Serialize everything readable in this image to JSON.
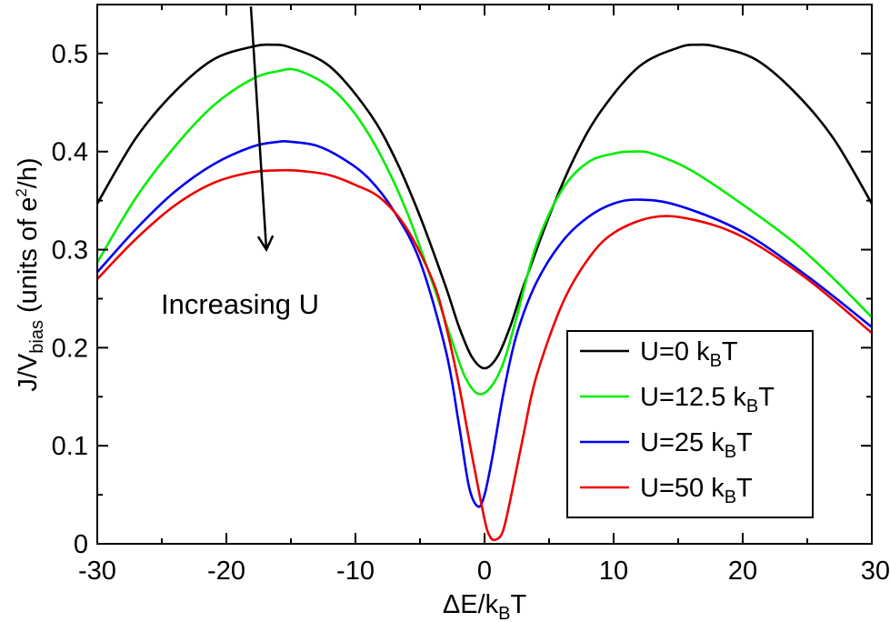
{
  "chart_data": {
    "type": "line",
    "title": "",
    "xlabel": {
      "prefix": "ΔE/k",
      "sub": "B",
      "suffix": "T"
    },
    "ylabel": {
      "prefix": "J/V",
      "sub": "bias",
      "mid": " (units of e",
      "sup": "2",
      "suffix": "/h)"
    },
    "xlim": [
      -30,
      30
    ],
    "ylim": [
      0,
      0.55
    ],
    "xticks": [
      -30,
      -20,
      -10,
      0,
      10,
      20,
      30
    ],
    "xtick_labels": [
      "-30",
      "-20",
      "-10",
      "0",
      "10",
      "20",
      "30"
    ],
    "yticks": [
      0,
      0.1,
      0.2,
      0.3,
      0.4,
      0.5
    ],
    "ytick_labels": [
      "0",
      "0.1",
      "0.2",
      "0.3",
      "0.4",
      "0.5"
    ],
    "grid": false,
    "legend_position": "lower-right",
    "annotation": {
      "text": "Increasing U",
      "arrow_from": [
        -18.1,
        0.548
      ],
      "arrow_to": [
        -16.9,
        0.3
      ]
    },
    "series": [
      {
        "name": "U=0 kBT",
        "label_parts": {
          "prefix": "U=0 k",
          "sub": "B",
          "suffix": "T"
        },
        "color": "#000000",
        "x": [
          -30,
          -27,
          -24,
          -21,
          -18,
          -16.5,
          -15,
          -12,
          -9,
          -7,
          -5,
          -3,
          -2,
          -1,
          0,
          1,
          2,
          3,
          5,
          7,
          9,
          12,
          15,
          16.5,
          18,
          21,
          24,
          27,
          30
        ],
        "y": [
          0.347,
          0.414,
          0.461,
          0.494,
          0.507,
          0.509,
          0.506,
          0.487,
          0.441,
          0.395,
          0.334,
          0.262,
          0.222,
          0.191,
          0.179,
          0.191,
          0.222,
          0.262,
          0.334,
          0.395,
          0.441,
          0.487,
          0.506,
          0.509,
          0.507,
          0.494,
          0.461,
          0.414,
          0.347
        ]
      },
      {
        "name": "U=12.5 kBT",
        "label_parts": {
          "prefix": "U=12.5 k",
          "sub": "B",
          "suffix": "T"
        },
        "color": "#00ee00",
        "x": [
          -30,
          -27,
          -24,
          -21,
          -18,
          -16,
          -14.5,
          -12,
          -10,
          -8,
          -6,
          -4,
          -2.5,
          -1.5,
          -0.5,
          0.5,
          1.5,
          2.5,
          4,
          6,
          8,
          10,
          11.5,
          13,
          16,
          20,
          24,
          27,
          30
        ],
        "y": [
          0.287,
          0.353,
          0.405,
          0.447,
          0.474,
          0.482,
          0.483,
          0.466,
          0.438,
          0.395,
          0.338,
          0.265,
          0.206,
          0.17,
          0.153,
          0.16,
          0.186,
          0.232,
          0.304,
          0.361,
          0.389,
          0.398,
          0.4,
          0.398,
          0.381,
          0.346,
          0.307,
          0.271,
          0.231
        ]
      },
      {
        "name": "U=25 kBT",
        "label_parts": {
          "prefix": "U=25 k",
          "sub": "B",
          "suffix": "T"
        },
        "color": "#0000ee",
        "x": [
          -30,
          -27,
          -24,
          -21,
          -18,
          -16,
          -15,
          -13,
          -11,
          -9,
          -7,
          -5,
          -3,
          -2,
          -1.2,
          -0.5,
          0,
          0.6,
          1.5,
          2.5,
          4,
          6,
          8,
          10,
          12,
          15,
          20,
          25,
          30
        ],
        "y": [
          0.277,
          0.321,
          0.359,
          0.387,
          0.405,
          0.41,
          0.41,
          0.406,
          0.393,
          0.373,
          0.339,
          0.288,
          0.197,
          0.123,
          0.058,
          0.038,
          0.05,
          0.088,
          0.156,
          0.214,
          0.266,
          0.308,
          0.333,
          0.347,
          0.351,
          0.345,
          0.318,
          0.273,
          0.221
        ]
      },
      {
        "name": "U=50 kBT",
        "label_parts": {
          "prefix": "U=50 k",
          "sub": "B",
          "suffix": "T"
        },
        "color": "#ee0000",
        "x": [
          -30,
          -27,
          -24,
          -21,
          -18,
          -15.5,
          -14,
          -12,
          -10,
          -8,
          -6,
          -4,
          -3,
          -2,
          -1,
          0,
          0.4,
          0.8,
          1.4,
          2,
          3,
          4,
          6,
          8,
          10,
          13,
          16,
          20,
          25,
          30
        ],
        "y": [
          0.27,
          0.311,
          0.345,
          0.368,
          0.379,
          0.381,
          0.38,
          0.376,
          0.366,
          0.352,
          0.321,
          0.268,
          0.223,
          0.163,
          0.092,
          0.025,
          0.008,
          0.004,
          0.012,
          0.045,
          0.11,
          0.17,
          0.244,
          0.29,
          0.317,
          0.333,
          0.331,
          0.313,
          0.27,
          0.215
        ]
      }
    ]
  }
}
